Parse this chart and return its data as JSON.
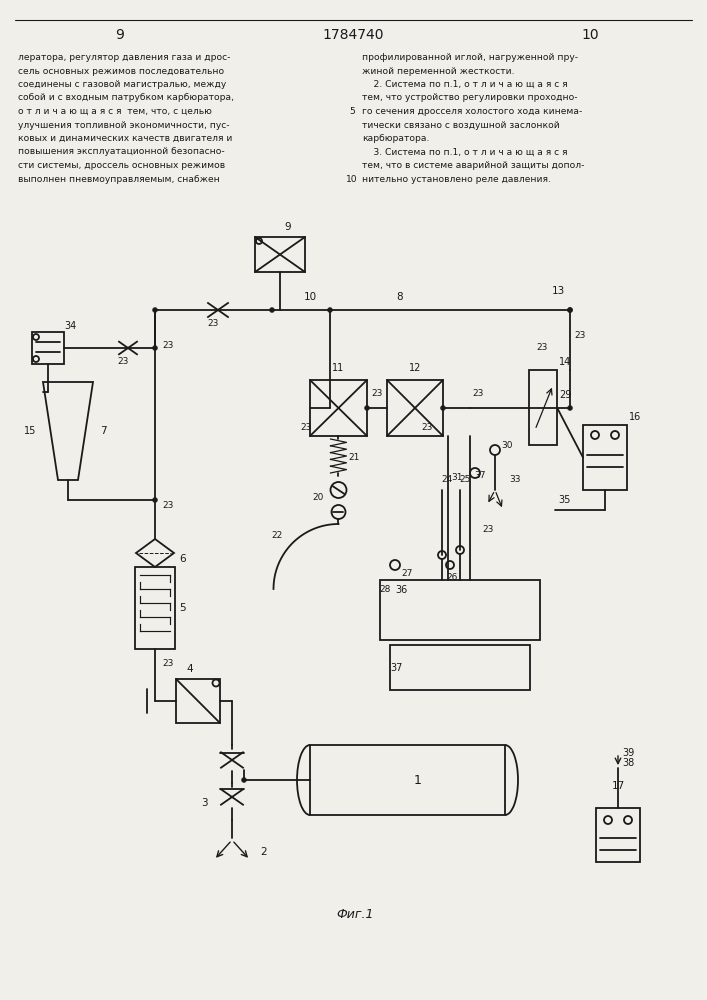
{
  "page_left": "9",
  "page_center": "1784740",
  "page_right": "10",
  "bg_color": "#f0efea",
  "lc": "#1a1a1a",
  "left_lines": [
    "лератора, регулятор давления газа и дрос-",
    "сель основных режимов последовательно",
    "соединены с газовой магистралью, между",
    "собой и с входным патрубком карбюратора,",
    "о т л и ч а ю щ а я с я  тем, что, с целью",
    "улучшения топливной экономичности, пус-",
    "ковых и динамических качеств двигателя и",
    "повышения эксплуатационной безопасно-",
    "сти системы, дроссель основных режимов",
    "выполнен пневмоуправляемым, снабжен"
  ],
  "right_lines": [
    "профилированной иглой, нагруженной пру-",
    "жиной переменной жесткости.",
    "    2. Система по п.1, о т л и ч а ю щ а я с я",
    "тем, что устройство регулировки проходно-",
    "го сечения дросселя холостого хода кинема-",
    "тически связано с воздушной заслонкой",
    "карбюратора.",
    "    3. Система по п.1, о т л и ч а ю щ а я с я",
    "тем, что в системе аварийной защиты допол-",
    "нительно установлено реле давления."
  ],
  "fig_label": "Фиг.1"
}
